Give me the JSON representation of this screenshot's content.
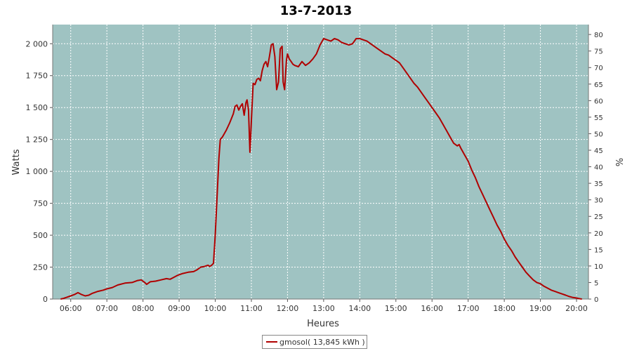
{
  "chart_data": {
    "type": "line",
    "title": "13-7-2013",
    "xlabel": "Heures",
    "ylabel": "Watts",
    "y2label": "%",
    "xlim": [
      5.5,
      20.33
    ],
    "ylim": [
      0,
      2150
    ],
    "y2lim": [
      0,
      83
    ],
    "xticks": [
      {
        "value": 6,
        "label": "06:00"
      },
      {
        "value": 7,
        "label": "07:00"
      },
      {
        "value": 8,
        "label": "08:00"
      },
      {
        "value": 9,
        "label": "09:00"
      },
      {
        "value": 10,
        "label": "10:00"
      },
      {
        "value": 11,
        "label": "11:00"
      },
      {
        "value": 12,
        "label": "12:00"
      },
      {
        "value": 13,
        "label": "13:00"
      },
      {
        "value": 14,
        "label": "14:00"
      },
      {
        "value": 15,
        "label": "15:00"
      },
      {
        "value": 16,
        "label": "16:00"
      },
      {
        "value": 17,
        "label": "17:00"
      },
      {
        "value": 18,
        "label": "18:00"
      },
      {
        "value": 19,
        "label": "19:00"
      },
      {
        "value": 20,
        "label": "20:00"
      }
    ],
    "yticks": [
      {
        "value": 0,
        "label": "0"
      },
      {
        "value": 250,
        "label": "250"
      },
      {
        "value": 500,
        "label": "500"
      },
      {
        "value": 750,
        "label": "750"
      },
      {
        "value": 1000,
        "label": "1 000"
      },
      {
        "value": 1250,
        "label": "1 250"
      },
      {
        "value": 1500,
        "label": "1 500"
      },
      {
        "value": 1750,
        "label": "1 750"
      },
      {
        "value": 2000,
        "label": "2 000"
      }
    ],
    "y2ticks": [
      0,
      5,
      10,
      15,
      20,
      25,
      30,
      35,
      40,
      45,
      50,
      55,
      60,
      65,
      70,
      75,
      80
    ],
    "grid": true,
    "legend_position": "bottom-center",
    "colors": {
      "plot_background": "#9fc3c2",
      "line": "#b00000",
      "grid": "#ffffff"
    },
    "series": [
      {
        "name": "gmosol( 13,845 kWh )",
        "points": [
          [
            5.72,
            0
          ],
          [
            5.8,
            5
          ],
          [
            5.9,
            15
          ],
          [
            6.0,
            25
          ],
          [
            6.1,
            35
          ],
          [
            6.2,
            50
          ],
          [
            6.3,
            35
          ],
          [
            6.4,
            25
          ],
          [
            6.5,
            30
          ],
          [
            6.6,
            45
          ],
          [
            6.75,
            60
          ],
          [
            6.9,
            70
          ],
          [
            7.0,
            80
          ],
          [
            7.15,
            90
          ],
          [
            7.3,
            110
          ],
          [
            7.5,
            125
          ],
          [
            7.7,
            130
          ],
          [
            7.85,
            145
          ],
          [
            7.95,
            150
          ],
          [
            8.05,
            130
          ],
          [
            8.1,
            115
          ],
          [
            8.2,
            135
          ],
          [
            8.35,
            140
          ],
          [
            8.5,
            150
          ],
          [
            8.65,
            160
          ],
          [
            8.75,
            155
          ],
          [
            8.85,
            170
          ],
          [
            8.95,
            185
          ],
          [
            9.1,
            200
          ],
          [
            9.25,
            210
          ],
          [
            9.4,
            215
          ],
          [
            9.5,
            230
          ],
          [
            9.6,
            250
          ],
          [
            9.7,
            255
          ],
          [
            9.8,
            265
          ],
          [
            9.85,
            255
          ],
          [
            9.9,
            265
          ],
          [
            9.95,
            280
          ],
          [
            10.0,
            500
          ],
          [
            10.05,
            800
          ],
          [
            10.1,
            1100
          ],
          [
            10.14,
            1250
          ],
          [
            10.2,
            1270
          ],
          [
            10.3,
            1320
          ],
          [
            10.4,
            1380
          ],
          [
            10.5,
            1450
          ],
          [
            10.55,
            1510
          ],
          [
            10.6,
            1520
          ],
          [
            10.65,
            1480
          ],
          [
            10.7,
            1510
          ],
          [
            10.75,
            1530
          ],
          [
            10.8,
            1440
          ],
          [
            10.85,
            1540
          ],
          [
            10.88,
            1560
          ],
          [
            10.92,
            1480
          ],
          [
            10.96,
            1150
          ],
          [
            11.0,
            1400
          ],
          [
            11.05,
            1690
          ],
          [
            11.1,
            1680
          ],
          [
            11.15,
            1720
          ],
          [
            11.2,
            1730
          ],
          [
            11.25,
            1710
          ],
          [
            11.3,
            1790
          ],
          [
            11.35,
            1840
          ],
          [
            11.4,
            1860
          ],
          [
            11.45,
            1820
          ],
          [
            11.5,
            1900
          ],
          [
            11.55,
            1990
          ],
          [
            11.6,
            2000
          ],
          [
            11.65,
            1900
          ],
          [
            11.7,
            1640
          ],
          [
            11.75,
            1700
          ],
          [
            11.8,
            1960
          ],
          [
            11.85,
            1980
          ],
          [
            11.88,
            1700
          ],
          [
            11.92,
            1640
          ],
          [
            11.97,
            1870
          ],
          [
            12.0,
            1920
          ],
          [
            12.05,
            1880
          ],
          [
            12.1,
            1860
          ],
          [
            12.15,
            1840
          ],
          [
            12.2,
            1830
          ],
          [
            12.3,
            1820
          ],
          [
            12.4,
            1860
          ],
          [
            12.5,
            1830
          ],
          [
            12.6,
            1850
          ],
          [
            12.7,
            1880
          ],
          [
            12.8,
            1920
          ],
          [
            12.9,
            1990
          ],
          [
            13.0,
            2040
          ],
          [
            13.1,
            2030
          ],
          [
            13.2,
            2020
          ],
          [
            13.3,
            2040
          ],
          [
            13.4,
            2030
          ],
          [
            13.5,
            2010
          ],
          [
            13.6,
            2000
          ],
          [
            13.7,
            1990
          ],
          [
            13.8,
            2000
          ],
          [
            13.9,
            2040
          ],
          [
            14.0,
            2040
          ],
          [
            14.1,
            2030
          ],
          [
            14.2,
            2020
          ],
          [
            14.3,
            2000
          ],
          [
            14.4,
            1980
          ],
          [
            14.5,
            1960
          ],
          [
            14.6,
            1940
          ],
          [
            14.7,
            1920
          ],
          [
            14.8,
            1910
          ],
          [
            14.9,
            1890
          ],
          [
            15.0,
            1870
          ],
          [
            15.1,
            1850
          ],
          [
            15.2,
            1810
          ],
          [
            15.3,
            1770
          ],
          [
            15.4,
            1730
          ],
          [
            15.5,
            1690
          ],
          [
            15.6,
            1660
          ],
          [
            15.7,
            1620
          ],
          [
            15.8,
            1580
          ],
          [
            15.9,
            1540
          ],
          [
            16.0,
            1500
          ],
          [
            16.1,
            1460
          ],
          [
            16.2,
            1420
          ],
          [
            16.3,
            1370
          ],
          [
            16.4,
            1320
          ],
          [
            16.5,
            1270
          ],
          [
            16.6,
            1220
          ],
          [
            16.7,
            1200
          ],
          [
            16.75,
            1210
          ],
          [
            16.8,
            1180
          ],
          [
            16.9,
            1130
          ],
          [
            17.0,
            1080
          ],
          [
            17.1,
            1010
          ],
          [
            17.2,
            950
          ],
          [
            17.3,
            880
          ],
          [
            17.4,
            820
          ],
          [
            17.5,
            760
          ],
          [
            17.6,
            700
          ],
          [
            17.7,
            640
          ],
          [
            17.8,
            580
          ],
          [
            17.9,
            530
          ],
          [
            18.0,
            470
          ],
          [
            18.1,
            420
          ],
          [
            18.2,
            380
          ],
          [
            18.3,
            330
          ],
          [
            18.4,
            290
          ],
          [
            18.5,
            250
          ],
          [
            18.6,
            210
          ],
          [
            18.7,
            180
          ],
          [
            18.8,
            150
          ],
          [
            18.9,
            130
          ],
          [
            19.0,
            120
          ],
          [
            19.1,
            100
          ],
          [
            19.2,
            85
          ],
          [
            19.3,
            70
          ],
          [
            19.4,
            60
          ],
          [
            19.5,
            50
          ],
          [
            19.6,
            40
          ],
          [
            19.7,
            30
          ],
          [
            19.8,
            20
          ],
          [
            19.9,
            12
          ],
          [
            20.0,
            8
          ],
          [
            20.05,
            5
          ],
          [
            20.1,
            2
          ],
          [
            20.15,
            0
          ]
        ]
      }
    ]
  }
}
